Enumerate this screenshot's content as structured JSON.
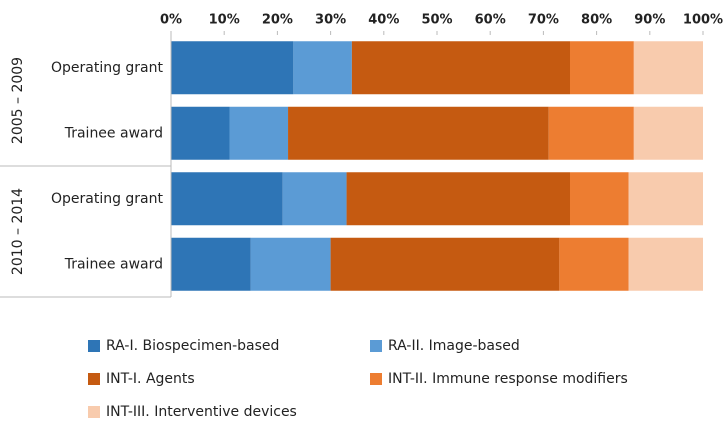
{
  "chart_data": {
    "type": "stacked_barh",
    "groups": [
      {
        "label": "2005 – 2009",
        "categories": [
          "Operating grant",
          "Trainee award"
        ]
      },
      {
        "label": "2010 – 2014",
        "categories": [
          "Operating grant",
          "Trainee award"
        ]
      }
    ],
    "series": [
      {
        "name": "RA-I. Biospecimen-based",
        "color": "#2e75b6",
        "values": [
          23,
          11,
          21,
          15
        ]
      },
      {
        "name": "RA-II. Image-based",
        "color": "#5b9bd5",
        "values": [
          11,
          11,
          12,
          15
        ]
      },
      {
        "name": "INT-I. Agents",
        "color": "#c55a11",
        "values": [
          41,
          49,
          42,
          43
        ]
      },
      {
        "name": "INT-II. Immune response modifiers",
        "color": "#ed7d31",
        "values": [
          12,
          16,
          11,
          13
        ]
      },
      {
        "name": "INT-III. Interventive devices",
        "color": "#f8cbad",
        "values": [
          13,
          13,
          14,
          14
        ]
      }
    ],
    "xlim": [
      0,
      100
    ],
    "xticks": [
      {
        "value": 0,
        "label": "0%"
      },
      {
        "value": 10,
        "label": "10%"
      },
      {
        "value": 20,
        "label": "20%"
      },
      {
        "value": 30,
        "label": "30%"
      },
      {
        "value": 40,
        "label": "40%"
      },
      {
        "value": 50,
        "label": "50%"
      },
      {
        "value": 60,
        "label": "60%"
      },
      {
        "value": 70,
        "label": "70%"
      },
      {
        "value": 80,
        "label": "80%"
      },
      {
        "value": 90,
        "label": "90%"
      },
      {
        "value": 100,
        "label": "100%"
      }
    ],
    "legend": "bottom"
  }
}
